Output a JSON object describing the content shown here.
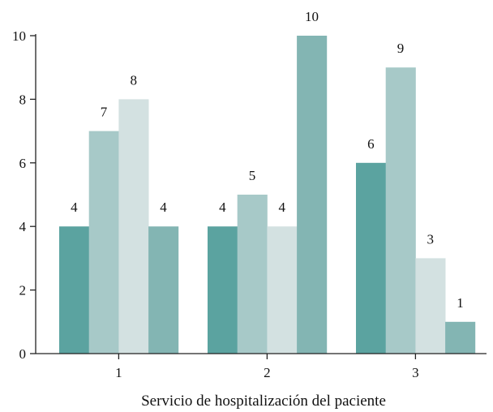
{
  "chart_data": {
    "type": "bar",
    "categories": [
      "1",
      "2",
      "3"
    ],
    "series": [
      {
        "values": [
          4,
          4,
          6
        ],
        "color": "#5ba3a0"
      },
      {
        "values": [
          7,
          5,
          9
        ],
        "color": "#a7c9c8"
      },
      {
        "values": [
          8,
          4,
          3
        ],
        "color": "#d3e1e1"
      },
      {
        "values": [
          4,
          10,
          1
        ],
        "color": "#83b5b3"
      }
    ],
    "yticks": [
      0,
      2,
      4,
      6,
      8,
      10
    ],
    "ylim": [
      0,
      10
    ],
    "xlabel": "Servicio de hospitalización del paciente",
    "ylabel": "",
    "title": "",
    "grid": false,
    "legend": "none"
  }
}
